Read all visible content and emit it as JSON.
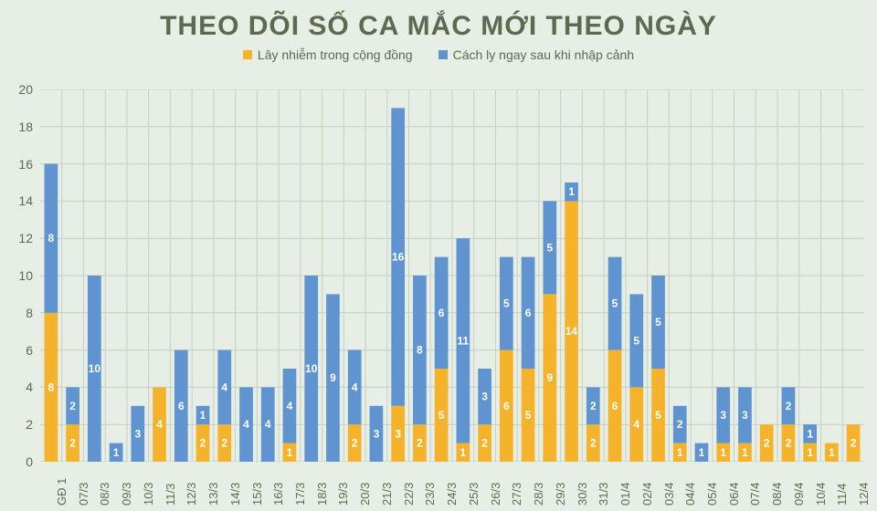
{
  "chart": {
    "type": "stacked-bar",
    "title": "THEO DÕI SỐ CA MẮC MỚI THEO NGÀY",
    "legend": [
      {
        "label": "Lây nhiễm trong cộng đồng",
        "color": "#f5b32c"
      },
      {
        "label": "Cách ly ngay sau khi nhập cảnh",
        "color": "#5f94d0"
      }
    ],
    "ylim": [
      0,
      20
    ],
    "ytick_step": 2,
    "background_color": "#e7eee5",
    "grid_color": "#c6d1bf",
    "colors": {
      "yellow": "#f5b32c",
      "blue": "#5f94d0"
    },
    "label_fontsize": 12,
    "series_keys": [
      "yellow",
      "blue"
    ],
    "categories": [
      "GĐ 1",
      "07/3",
      "08/3",
      "09/3",
      "10/3",
      "11/3",
      "12/3",
      "13/3",
      "14/3",
      "15/3",
      "16/3",
      "17/3",
      "18/3",
      "19/3",
      "20/3",
      "21/3",
      "22/3",
      "23/3",
      "24/3",
      "25/3",
      "26/3",
      "27/3",
      "28/3",
      "29/3",
      "30/3",
      "31/3",
      "01/4",
      "02/4",
      "03/4",
      "04/4",
      "05/4",
      "06/4",
      "07/4",
      "08/4",
      "09/4",
      "10/4",
      "11/4",
      "12/4"
    ],
    "data": [
      {
        "yellow": 8,
        "blue": 8
      },
      {
        "yellow": 2,
        "blue": 2
      },
      {
        "yellow": 0,
        "blue": 10
      },
      {
        "yellow": 0,
        "blue": 1
      },
      {
        "yellow": 0,
        "blue": 3
      },
      {
        "yellow": 4,
        "blue": 0
      },
      {
        "yellow": 0,
        "blue": 6
      },
      {
        "yellow": 2,
        "blue": 1
      },
      {
        "yellow": 2,
        "blue": 4
      },
      {
        "yellow": 0,
        "blue": 4
      },
      {
        "yellow": 0,
        "blue": 4
      },
      {
        "yellow": 1,
        "blue": 4
      },
      {
        "yellow": 0,
        "blue": 10
      },
      {
        "yellow": 0,
        "blue": 9
      },
      {
        "yellow": 2,
        "blue": 4
      },
      {
        "yellow": 0,
        "blue": 3
      },
      {
        "yellow": 3,
        "blue": 16
      },
      {
        "yellow": 2,
        "blue": 8
      },
      {
        "yellow": 5,
        "blue": 6
      },
      {
        "yellow": 1,
        "blue": 11
      },
      {
        "yellow": 2,
        "blue": 3
      },
      {
        "yellow": 6,
        "blue": 5
      },
      {
        "yellow": 5,
        "blue": 6
      },
      {
        "yellow": 9,
        "blue": 5
      },
      {
        "yellow": 14,
        "blue": 1
      },
      {
        "yellow": 2,
        "blue": 2
      },
      {
        "yellow": 6,
        "blue": 5
      },
      {
        "yellow": 4,
        "blue": 5
      },
      {
        "yellow": 5,
        "blue": 5
      },
      {
        "yellow": 1,
        "blue": 2
      },
      {
        "yellow": 0,
        "blue": 1
      },
      {
        "yellow": 1,
        "blue": 3
      },
      {
        "yellow": 1,
        "blue": 3
      },
      {
        "yellow": 2,
        "blue": 0
      },
      {
        "yellow": 2,
        "blue": 2
      },
      {
        "yellow": 1,
        "blue": 1
      },
      {
        "yellow": 1,
        "blue": 0
      },
      {
        "yellow": 2,
        "blue": 0
      }
    ]
  }
}
